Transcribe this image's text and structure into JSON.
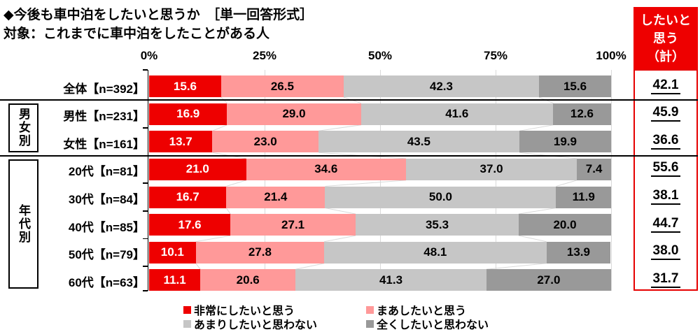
{
  "page_title": "◆今後も車中泊をしたいと思うか　［単一回答形式］",
  "page_subtitle": "対象：これまでに車中泊をしたことがある人",
  "summary_column": {
    "header": "したいと思う（計）",
    "header_lines": [
      "したいと",
      "思う",
      "（計）"
    ]
  },
  "colors": {
    "red": "#ee0000",
    "pink": "#ff9999",
    "gray_light": "#c6c6c6",
    "gray_dark": "#999999",
    "summary_border": "#e60000",
    "grid": "#d9d9d9",
    "connector": "#d9d9d9"
  },
  "chart_data": {
    "type": "bar",
    "stacked": true,
    "orientation": "horizontal",
    "unit": "%",
    "x_axis": {
      "range": [
        0,
        100
      ],
      "ticks": [
        {
          "label": "0%",
          "value": 0
        },
        {
          "label": "25%",
          "value": 25
        },
        {
          "label": "50%",
          "value": 50
        },
        {
          "label": "75%",
          "value": 75
        },
        {
          "label": "100%",
          "value": 100
        }
      ]
    },
    "categories": [
      "全体【n=392】",
      "男性【n=231】",
      "女性【n=161】",
      "20代【n=81】",
      "30代【n=84】",
      "40代【n=85】",
      "50代【n=79】",
      "60代【n=63】"
    ],
    "series": [
      {
        "name": "非常にしたいと思う",
        "color_key": "red",
        "values": [
          15.6,
          16.9,
          13.7,
          21.0,
          16.7,
          17.6,
          10.1,
          11.1
        ]
      },
      {
        "name": "まあしたいと思う",
        "color_key": "pink",
        "values": [
          26.5,
          29.0,
          23.0,
          34.6,
          21.4,
          27.1,
          27.8,
          20.6
        ]
      },
      {
        "name": "あまりしたいと思わない",
        "color_key": "gray_light",
        "values": [
          42.3,
          41.6,
          43.5,
          37.0,
          50.0,
          35.3,
          48.1,
          41.3
        ]
      },
      {
        "name": "全くしたいと思わない",
        "color_key": "gray_dark",
        "values": [
          15.6,
          12.6,
          19.9,
          7.4,
          11.9,
          20.0,
          13.9,
          27.0
        ]
      }
    ],
    "totals": {
      "header": "したいと思う（計）",
      "values": [
        42.1,
        45.9,
        36.6,
        55.6,
        38.1,
        44.7,
        38.0,
        31.7
      ]
    },
    "groups": [
      {
        "label": "男女別",
        "start": 1,
        "end": 2
      },
      {
        "label": "年代別",
        "start": 3,
        "end": 7
      }
    ],
    "legend_position": "bottom"
  }
}
